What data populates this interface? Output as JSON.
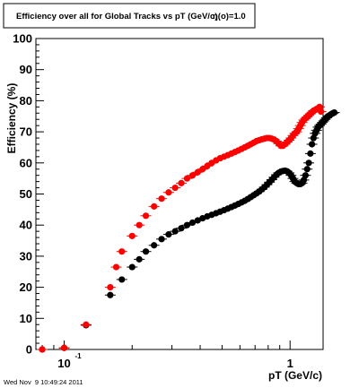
{
  "chart_data": {
    "type": "scatter",
    "title": "Efficiency over all for Global Tracks vs pT (GeV/c)",
    "title_overlap_text": "η(o)=1.0",
    "xlabel": "pT (GeV/c)",
    "ylabel": "Efficiency (%)",
    "xscale": "log",
    "xlim": [
      0.075,
      1.4
    ],
    "ylim": [
      0,
      100
    ],
    "y_ticks": [
      0,
      10,
      20,
      30,
      40,
      50,
      60,
      70,
      80,
      90,
      100
    ],
    "x_tick_labels": [
      {
        "value": 0.1,
        "base": "10",
        "exponent": "-1"
      },
      {
        "value": 1,
        "base": "1",
        "exponent": ""
      }
    ],
    "grid": false,
    "legend": "none",
    "timestamp": "Wed Nov  9 10:49:24 2011",
    "series": [
      {
        "color": "#000000",
        "x": [
          0.08,
          0.1,
          0.125,
          0.16,
          0.18,
          0.2,
          0.215,
          0.23,
          0.25,
          0.27,
          0.29,
          0.31,
          0.33,
          0.35,
          0.37,
          0.39,
          0.41,
          0.43,
          0.45,
          0.47,
          0.49,
          0.51,
          0.53,
          0.55,
          0.57,
          0.59,
          0.61,
          0.63,
          0.65,
          0.67,
          0.69,
          0.71,
          0.73,
          0.75,
          0.77,
          0.79,
          0.81,
          0.83,
          0.85,
          0.87,
          0.89,
          0.91,
          0.93,
          0.95,
          0.97,
          0.99,
          1.01,
          1.03,
          1.05,
          1.07,
          1.09,
          1.11,
          1.13,
          1.15,
          1.17,
          1.19,
          1.21,
          1.23,
          1.25,
          1.27,
          1.29,
          1.31,
          1.33,
          1.35,
          1.37,
          1.39,
          1.41,
          1.43,
          1.45,
          1.47,
          1.49,
          1.51,
          1.53,
          1.55,
          1.57
        ],
        "y": [
          0,
          0.5,
          7.8,
          17.5,
          22.5,
          26.5,
          29,
          31.5,
          33.5,
          35.5,
          37,
          38,
          39,
          40,
          40.8,
          41.5,
          42.2,
          42.8,
          43.3,
          43.8,
          44.3,
          44.8,
          45.3,
          45.8,
          46.3,
          46.8,
          47.3,
          47.8,
          48.4,
          49,
          49.6,
          50.2,
          50.8,
          51.5,
          52.2,
          53,
          53.8,
          54.6,
          55.4,
          56.2,
          56.8,
          57.2,
          57.4,
          57.5,
          57.3,
          56.8,
          56,
          55,
          54,
          53.5,
          53.2,
          53.2,
          53.5,
          54.5,
          56,
          58,
          60,
          63,
          66,
          68,
          69.5,
          70.5,
          71.5,
          72,
          72.5,
          73,
          73.5,
          74,
          74.5,
          75,
          75.2,
          75.5,
          75.8,
          76,
          76.2
        ]
      },
      {
        "color": "#ff0000",
        "x": [
          0.08,
          0.1,
          0.125,
          0.16,
          0.17,
          0.18,
          0.2,
          0.215,
          0.23,
          0.25,
          0.27,
          0.29,
          0.31,
          0.33,
          0.35,
          0.37,
          0.39,
          0.41,
          0.43,
          0.45,
          0.47,
          0.49,
          0.51,
          0.53,
          0.55,
          0.57,
          0.59,
          0.61,
          0.63,
          0.65,
          0.67,
          0.69,
          0.71,
          0.73,
          0.75,
          0.77,
          0.79,
          0.81,
          0.83,
          0.85,
          0.87,
          0.89,
          0.91,
          0.93,
          0.95,
          0.97,
          0.99,
          1.01,
          1.03,
          1.05,
          1.07,
          1.09,
          1.11,
          1.13,
          1.15,
          1.17,
          1.19,
          1.21,
          1.23,
          1.25,
          1.27,
          1.29,
          1.31,
          1.33,
          1.35,
          1.37
        ],
        "y": [
          0,
          0.5,
          8,
          20,
          26.5,
          31.5,
          36.5,
          40,
          43,
          46,
          48.5,
          50.5,
          52,
          53.5,
          55,
          56,
          57,
          58,
          59,
          60,
          60.8,
          61.5,
          62,
          62.5,
          63,
          63.5,
          64,
          64.5,
          65,
          65.5,
          66,
          66.5,
          67,
          67.3,
          67.6,
          67.8,
          68,
          68,
          67.8,
          67.5,
          67,
          66.2,
          65.5,
          65.5,
          66,
          66.7,
          67.3,
          68,
          68.8,
          69.5,
          70,
          71,
          72,
          73,
          73.8,
          74.3,
          74.8,
          75.3,
          75.8,
          76.3,
          76.8,
          77,
          77.3,
          77.6,
          78,
          76.5
        ]
      }
    ]
  }
}
